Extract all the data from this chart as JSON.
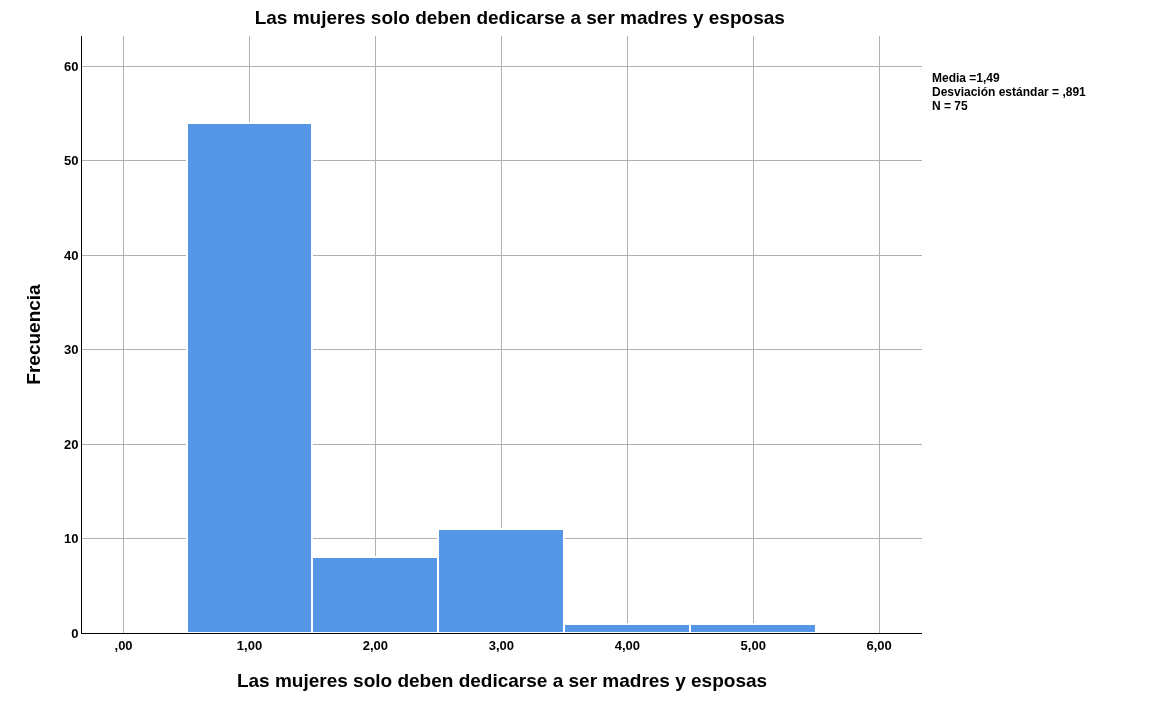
{
  "chart_data": {
    "type": "histogram",
    "title": "Las mujeres solo deben dedicarse a ser madres y esposas",
    "xlabel": "Las mujeres solo deben dedicarse a ser madres y esposas",
    "ylabel": "Frecuencia",
    "bins": [
      0.5,
      1.5,
      2.5,
      3.5,
      4.5,
      5.5
    ],
    "values": [
      54,
      8,
      11,
      1,
      1
    ],
    "color": "#5596e6",
    "xlim": [
      -0.33,
      6.34
    ],
    "ylim": [
      0,
      63.2
    ],
    "xticks": [
      {
        "value": 0,
        "label": ",00"
      },
      {
        "value": 1,
        "label": "1,00"
      },
      {
        "value": 2,
        "label": "2,00"
      },
      {
        "value": 3,
        "label": "3,00"
      },
      {
        "value": 4,
        "label": "4,00"
      },
      {
        "value": 5,
        "label": "5,00"
      },
      {
        "value": 6,
        "label": "6,00"
      }
    ],
    "yticks": [
      0,
      10,
      20,
      30,
      40,
      50,
      60
    ],
    "grid": true,
    "annotations": [
      "Media =1,49",
      "Desviación estándar = ,891",
      "N = 75"
    ]
  }
}
